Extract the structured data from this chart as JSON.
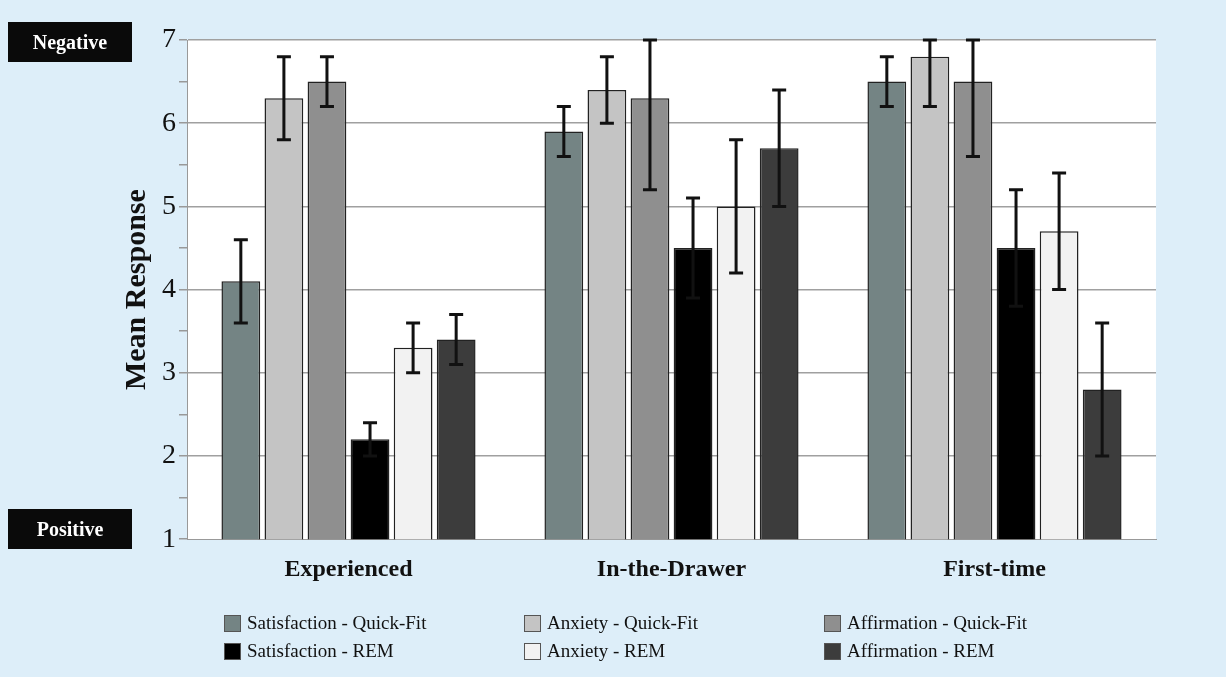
{
  "chart_data": {
    "type": "bar",
    "ylabel": "Mean Response",
    "categories": [
      "Experienced",
      "In-the-Drawer",
      "First-time"
    ],
    "ylim": [
      1,
      7
    ],
    "yticks": [
      1,
      {
        "value": 1.5,
        "label": null
      },
      2,
      {
        "value": 2.5,
        "label": null
      },
      3,
      {
        "value": 3.5,
        "label": null
      },
      4,
      {
        "value": 4.5,
        "label": null
      },
      5,
      {
        "value": 5.5,
        "label": null
      },
      6,
      {
        "value": 6.5,
        "label": null
      },
      7
    ],
    "grid": "y",
    "legend": "bottom",
    "annotations": [
      "Negative",
      "Positive"
    ],
    "series": [
      {
        "name": "Satisfaction - Quick-Fit",
        "color": "#748484",
        "values": [
          4.1,
          5.9,
          6.5
        ],
        "errors": [
          [
            3.6,
            4.6
          ],
          [
            5.6,
            6.2
          ],
          [
            6.2,
            6.8
          ]
        ]
      },
      {
        "name": "Anxiety - Quick-Fit",
        "color": "#c4c4c4",
        "values": [
          6.3,
          6.4,
          6.8
        ],
        "errors": [
          [
            5.8,
            6.8
          ],
          [
            6.0,
            6.8
          ],
          [
            6.2,
            7
          ]
        ]
      },
      {
        "name": "Affirmation - Quick-Fit",
        "color": "#8f8f8f",
        "values": [
          6.5,
          6.3,
          6.5
        ],
        "errors": [
          [
            6.2,
            6.8
          ],
          [
            5.2,
            7
          ],
          [
            5.6,
            7
          ]
        ]
      },
      {
        "name": "Satisfaction - REM",
        "color": "#000000",
        "values": [
          2.2,
          4.5,
          4.5
        ],
        "errors": [
          [
            2.0,
            2.4
          ],
          [
            3.9,
            5.1
          ],
          [
            3.8,
            5.2
          ]
        ]
      },
      {
        "name": "Anxiety - REM",
        "color": "#f2f2f2",
        "values": [
          3.3,
          5.0,
          4.7
        ],
        "errors": [
          [
            3.0,
            3.6
          ],
          [
            4.2,
            5.8
          ],
          [
            4.0,
            5.4
          ]
        ]
      },
      {
        "name": "Affirmation - REM",
        "color": "#3c3c3c",
        "values": [
          3.4,
          5.7,
          2.8
        ],
        "errors": [
          [
            3.1,
            3.7
          ],
          [
            5.0,
            6.4
          ],
          [
            2.0,
            3.6
          ]
        ]
      }
    ]
  }
}
